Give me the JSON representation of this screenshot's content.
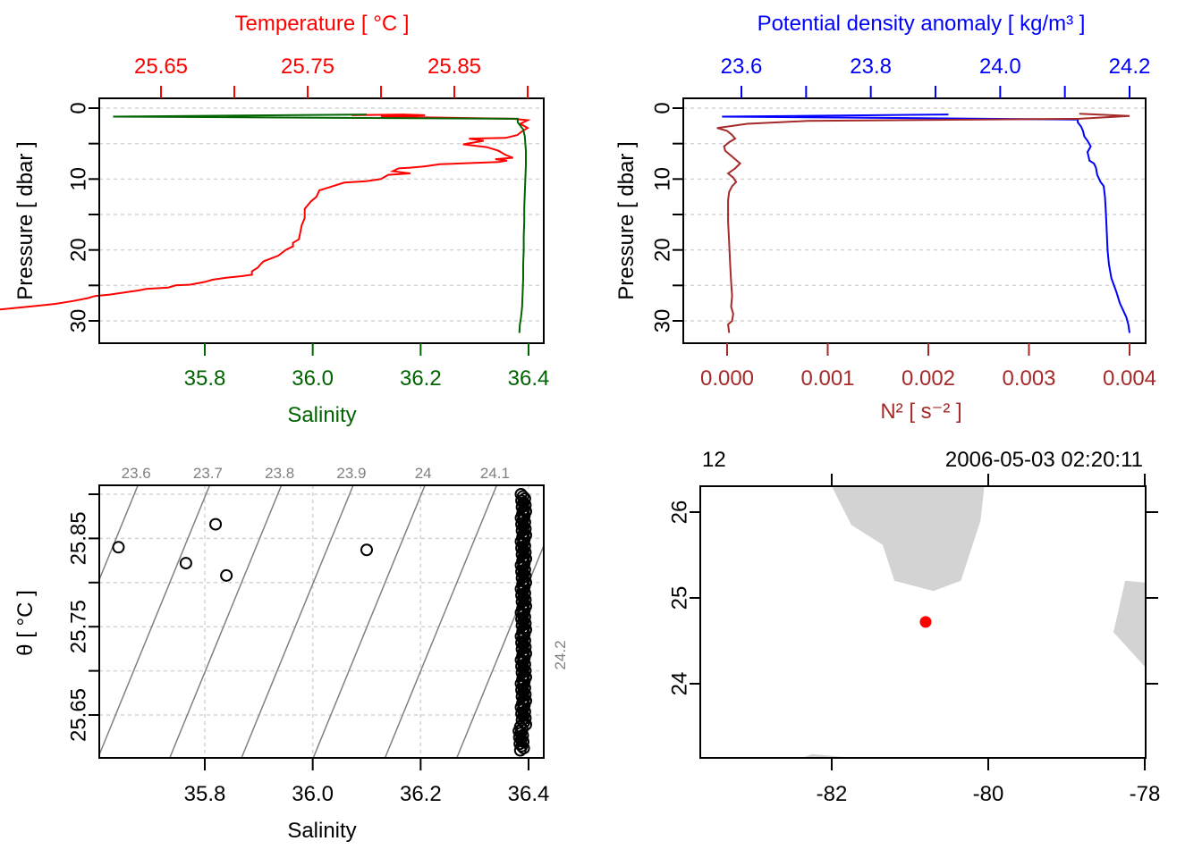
{
  "colors": {
    "temperature": "#ff0000",
    "salinity": "#006400",
    "density": "#0000ff",
    "n2": "#a52a2a",
    "isopycnal": "#808080",
    "grid": "#d3d3d3",
    "land": "#d3d3d3",
    "station": "#ff0000",
    "axis": "#000000"
  },
  "chart_data": [
    {
      "type": "line",
      "panel": "profile-temperature-salinity",
      "title_top": "Temperature [ °C ]",
      "xlabel_bottom": "Salinity",
      "ylabel": "Pressure [ dbar ]",
      "y_ticks": [
        "0",
        "10",
        "20",
        "30"
      ],
      "y_minor_ticks": [
        5,
        15,
        25
      ],
      "ylim": [
        33,
        -1.5
      ],
      "top_axis": {
        "ticks": [
          25.65,
          25.7,
          25.75,
          25.8,
          25.85,
          25.9
        ],
        "labels": [
          "25.65",
          "25.75",
          "25.85"
        ],
        "range": [
          25.6,
          25.905
        ]
      },
      "bottom_axis": {
        "ticks": [
          35.8,
          36.0,
          36.2,
          36.4
        ],
        "labels": [
          "35.8",
          "36.0",
          "36.2",
          "36.4"
        ],
        "range": [
          35.6,
          36.42
        ]
      },
      "grid": "horizontal-dashed",
      "series": [
        {
          "name": "Temperature",
          "axis": "top",
          "points": [
            [
              25.78,
              1.0
            ],
            [
              25.815,
              0.9
            ],
            [
              25.83,
              1.0
            ],
            [
              25.8,
              1.2
            ],
            [
              25.89,
              1.5
            ],
            [
              25.9,
              1.7
            ],
            [
              25.895,
              2.2
            ],
            [
              25.9,
              2.8
            ],
            [
              25.896,
              3.3
            ],
            [
              25.893,
              3.8
            ],
            [
              25.885,
              4.2
            ],
            [
              25.86,
              4.3
            ],
            [
              25.87,
              4.6
            ],
            [
              25.856,
              5.1
            ],
            [
              25.872,
              5.5
            ],
            [
              25.88,
              6.0
            ],
            [
              25.885,
              6.6
            ],
            [
              25.89,
              7.0
            ],
            [
              25.878,
              7.2
            ],
            [
              25.886,
              7.4
            ],
            [
              25.88,
              7.6
            ],
            [
              25.84,
              7.9
            ],
            [
              25.83,
              8.2
            ],
            [
              25.82,
              8.4
            ],
            [
              25.812,
              8.5
            ],
            [
              25.808,
              8.9
            ],
            [
              25.82,
              9.2
            ],
            [
              25.805,
              9.4
            ],
            [
              25.8,
              10.0
            ],
            [
              25.79,
              10.3
            ],
            [
              25.775,
              10.5
            ],
            [
              25.764,
              11.2
            ],
            [
              25.758,
              11.6
            ],
            [
              25.756,
              12.5
            ],
            [
              25.752,
              13.2
            ],
            [
              25.748,
              14.2
            ],
            [
              25.748,
              15.5
            ],
            [
              25.746,
              16.5
            ],
            [
              25.745,
              17.5
            ],
            [
              25.744,
              18.5
            ],
            [
              25.74,
              19.0
            ],
            [
              25.74,
              19.5
            ],
            [
              25.735,
              20.0
            ],
            [
              25.73,
              20.8
            ],
            [
              25.725,
              21.2
            ],
            [
              25.72,
              21.6
            ],
            [
              25.718,
              22.0
            ],
            [
              25.716,
              22.5
            ],
            [
              25.712,
              23.0
            ],
            [
              25.712,
              23.5
            ],
            [
              25.705,
              23.7
            ],
            [
              25.695,
              23.9
            ],
            [
              25.685,
              24.2
            ],
            [
              25.68,
              24.5
            ],
            [
              25.67,
              24.9
            ],
            [
              25.66,
              25.0
            ],
            [
              25.655,
              25.3
            ],
            [
              25.64,
              25.5
            ],
            [
              25.635,
              25.7
            ],
            [
              25.625,
              26.0
            ],
            [
              25.615,
              26.3
            ],
            [
              25.605,
              26.5
            ],
            [
              25.6,
              26.8
            ],
            [
              25.59,
              27.2
            ],
            [
              25.578,
              27.6
            ],
            [
              25.565,
              27.9
            ],
            [
              25.555,
              28.1
            ],
            [
              25.545,
              28.3
            ],
            [
              25.535,
              28.5
            ],
            [
              25.525,
              28.7
            ],
            [
              25.515,
              28.9
            ],
            [
              25.505,
              29.1
            ],
            [
              25.497,
              29.3
            ],
            [
              25.49,
              29.6
            ],
            [
              25.488,
              29.9
            ],
            [
              25.51,
              30.0
            ],
            [
              25.486,
              30.0
            ],
            [
              25.48,
              30.3
            ],
            [
              25.49,
              30.6
            ],
            [
              25.477,
              30.7
            ],
            [
              25.472,
              31.0
            ],
            [
              25.465,
              31.3
            ],
            [
              25.455,
              31.7
            ]
          ]
        },
        {
          "name": "Salinity",
          "axis": "bottom",
          "points": [
            [
              36.1,
              0.9
            ],
            [
              35.63,
              1.2
            ],
            [
              36.38,
              1.5
            ],
            [
              36.38,
              2.0
            ],
            [
              36.385,
              2.5
            ],
            [
              36.39,
              3.0
            ],
            [
              36.393,
              4.0
            ],
            [
              36.395,
              6.0
            ],
            [
              36.395,
              8.0
            ],
            [
              36.394,
              10.0
            ],
            [
              36.393,
              12.0
            ],
            [
              36.392,
              14.0
            ],
            [
              36.392,
              16.0
            ],
            [
              36.391,
              18.0
            ],
            [
              36.391,
              20.0
            ],
            [
              36.39,
              22.0
            ],
            [
              36.39,
              24.0
            ],
            [
              36.389,
              26.0
            ],
            [
              36.388,
              28.0
            ],
            [
              36.386,
              29.5
            ],
            [
              36.384,
              30.5
            ],
            [
              36.383,
              31.7
            ]
          ]
        }
      ]
    },
    {
      "type": "line",
      "panel": "profile-density-n2",
      "title_top": "Potential density anomaly [ kg/m³ ]",
      "xlabel_bottom": "N² [ s⁻² ]",
      "ylabel": "Pressure [ dbar ]",
      "y_ticks": [
        "0",
        "10",
        "20",
        "30"
      ],
      "y_minor_ticks": [
        5,
        15,
        25
      ],
      "ylim": [
        33,
        -1.5
      ],
      "top_axis": {
        "ticks": [
          23.6,
          23.7,
          23.8,
          23.9,
          24.0,
          24.1,
          24.2
        ],
        "labels": [
          "23.6",
          "23.8",
          "24.0",
          "24.2"
        ],
        "range": [
          23.55,
          24.21
        ]
      },
      "bottom_axis": {
        "ticks": [
          0.0,
          0.001,
          0.002,
          0.003,
          0.004
        ],
        "labels": [
          "0.000",
          "0.001",
          "0.002",
          "0.003",
          "0.004"
        ],
        "range": [
          -0.0002,
          0.00415
        ]
      },
      "grid": "horizontal-dashed",
      "series": [
        {
          "name": "Potential density anomaly",
          "axis": "top",
          "points": [
            [
              23.92,
              0.9
            ],
            [
              23.57,
              1.2
            ],
            [
              24.12,
              1.6
            ],
            [
              24.12,
              2.0
            ],
            [
              24.125,
              2.6
            ],
            [
              24.128,
              3.2
            ],
            [
              24.13,
              4.0
            ],
            [
              24.135,
              4.6
            ],
            [
              24.14,
              5.4
            ],
            [
              24.135,
              6.2
            ],
            [
              24.138,
              7.4
            ],
            [
              24.145,
              7.8
            ],
            [
              24.148,
              8.4
            ],
            [
              24.15,
              9.4
            ],
            [
              24.155,
              10.4
            ],
            [
              24.16,
              11.0
            ],
            [
              24.162,
              12.5
            ],
            [
              24.163,
              14.0
            ],
            [
              24.164,
              16.0
            ],
            [
              24.165,
              18.0
            ],
            [
              24.166,
              20.0
            ],
            [
              24.168,
              22.0
            ],
            [
              24.172,
              24.0
            ],
            [
              24.18,
              26.0
            ],
            [
              24.185,
              27.5
            ],
            [
              24.19,
              28.5
            ],
            [
              24.195,
              29.5
            ],
            [
              24.198,
              30.5
            ],
            [
              24.2,
              31.7
            ]
          ]
        },
        {
          "name": "N2",
          "axis": "bottom",
          "points": [
            [
              0.0035,
              0.8
            ],
            [
              0.004,
              1.1
            ],
            [
              0.0035,
              1.5
            ],
            [
              0.0008,
              1.8
            ],
            [
              0.0002,
              2.2
            ],
            [
              -0.0001,
              2.8
            ],
            [
              0.0,
              3.2
            ],
            [
              5e-05,
              3.8
            ],
            [
              8e-05,
              4.3
            ],
            [
              2e-05,
              4.8
            ],
            [
              -3e-05,
              5.4
            ],
            [
              -2e-05,
              6.0
            ],
            [
              3e-05,
              6.6
            ],
            [
              8e-05,
              7.2
            ],
            [
              0.00013,
              7.8
            ],
            [
              8e-05,
              8.5
            ],
            [
              1e-05,
              9.2
            ],
            [
              6e-05,
              9.8
            ],
            [
              9e-05,
              10.4
            ],
            [
              5e-05,
              11.0
            ],
            [
              2e-05,
              11.8
            ],
            [
              1e-05,
              13.0
            ],
            [
              1e-05,
              16.0
            ],
            [
              2e-05,
              19.0
            ],
            [
              3e-05,
              22.0
            ],
            [
              4e-05,
              24.5
            ],
            [
              5e-05,
              26.5
            ],
            [
              4e-05,
              28.0
            ],
            [
              6e-05,
              29.0
            ],
            [
              5e-05,
              30.0
            ],
            [
              1e-05,
              30.5
            ],
            [
              2e-05,
              31.7
            ]
          ]
        }
      ]
    },
    {
      "type": "scatter",
      "panel": "ts-diagram",
      "xlabel": "Salinity",
      "ylabel": "θ [ °C ]",
      "x_ticks": [
        35.8,
        36.0,
        36.2,
        36.4
      ],
      "x_tick_labels": [
        "35.8",
        "36.0",
        "36.2",
        "36.4"
      ],
      "y_ticks": [
        25.65,
        25.7,
        25.75,
        25.8,
        25.85,
        25.9
      ],
      "y_tick_labels": [
        "25.65",
        "25.75",
        "25.85"
      ],
      "xlim": [
        35.6,
        36.42
      ],
      "ylim": [
        25.6,
        25.905
      ],
      "grid": "dashed",
      "isopycnals": {
        "levels": [
          23.6,
          23.7,
          23.8,
          23.9,
          24.0,
          24.1,
          24.2
        ],
        "labels": [
          "23.6",
          "23.7",
          "23.8",
          "23.9",
          "24",
          "24.1",
          "24.2"
        ]
      },
      "outlier_points": [
        [
          35.64,
          25.84
        ],
        [
          35.765,
          25.822
        ],
        [
          35.82,
          25.866
        ],
        [
          35.84,
          25.808
        ],
        [
          36.1,
          25.837
        ]
      ],
      "profile_points": {
        "salinity_range": [
          36.38,
          36.395
        ],
        "theta_range": [
          25.61,
          25.9
        ],
        "count_approx": 120
      }
    },
    {
      "type": "map",
      "panel": "station-map",
      "header_left": "12",
      "header_right": "2006-05-03 02:20:11",
      "x_ticks": [
        -82,
        -80,
        -78
      ],
      "x_tick_labels": [
        "-82",
        "-80",
        "-78"
      ],
      "y_ticks": [
        24,
        25,
        26
      ],
      "y_tick_labels": [
        "24",
        "25",
        "26"
      ],
      "xlim": [
        -83.7,
        -78
      ],
      "ylim": [
        23.1,
        26.3
      ],
      "station": {
        "lon": -80.8,
        "lat": 24.72
      },
      "land": [
        [
          [
            -82.0,
            26.3
          ],
          [
            -81.75,
            25.85
          ],
          [
            -81.35,
            25.62
          ],
          [
            -81.2,
            25.2
          ],
          [
            -80.7,
            25.08
          ],
          [
            -80.35,
            25.2
          ],
          [
            -80.1,
            25.9
          ],
          [
            -80.05,
            26.3
          ]
        ],
        [
          [
            -78.25,
            25.2
          ],
          [
            -78.0,
            25.18
          ],
          [
            -78.0,
            24.2
          ],
          [
            -78.25,
            24.45
          ],
          [
            -78.4,
            24.6
          ]
        ],
        [
          [
            -82.4,
            23.13
          ],
          [
            -82.25,
            23.18
          ],
          [
            -81.9,
            23.15
          ],
          [
            -81.6,
            23.13
          ]
        ]
      ]
    }
  ]
}
